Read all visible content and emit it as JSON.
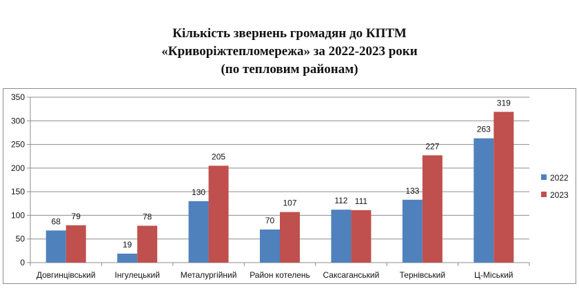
{
  "title": {
    "line1": "Кількість звернень громадян до КПТМ",
    "line2": "«Криворіжтепломережа» за 2022-2023 роки",
    "line3": "(по тепловим районам)"
  },
  "chart_data": {
    "type": "bar",
    "categories": [
      "Довгинцівський",
      "Інгулецький",
      "Металургійний",
      "Район котелень",
      "Саксаганський",
      "Тернівський",
      "Ц-Міський"
    ],
    "series": [
      {
        "name": "2022",
        "color": "#4f81bd",
        "values": [
          68,
          19,
          130,
          70,
          112,
          133,
          263
        ]
      },
      {
        "name": "2023",
        "color": "#c0504d",
        "values": [
          79,
          78,
          205,
          107,
          111,
          227,
          319
        ]
      }
    ],
    "ylim": [
      0,
      350
    ],
    "yticks": [
      0,
      50,
      100,
      150,
      200,
      250,
      300,
      350
    ],
    "grid": true,
    "legend": "right",
    "data_labels": true
  }
}
